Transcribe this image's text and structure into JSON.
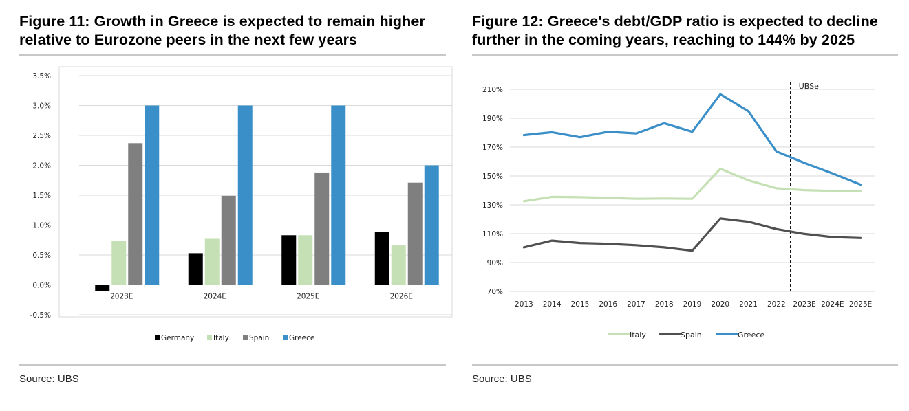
{
  "colors": {
    "germany": "#000000",
    "italy": "#c5e0b4",
    "spain": "#7f7f7f",
    "greece": "#3a8fc8",
    "spain_line": "#505050",
    "grid": "#d9d9d9",
    "rule": "#c8c8c8"
  },
  "figure11": {
    "title_line1": "Figure 11: Growth in Greece is expected to remain higher",
    "title_line2": "relative to Eurozone peers in the next few years",
    "source": "Source: UBS",
    "chart_data": {
      "type": "bar",
      "categories": [
        "2023E",
        "2024E",
        "2025E",
        "2026E"
      ],
      "series": [
        {
          "name": "Germany",
          "values": [
            -0.1,
            0.53,
            0.83,
            0.89
          ]
        },
        {
          "name": "Italy",
          "values": [
            0.73,
            0.77,
            0.83,
            0.66
          ]
        },
        {
          "name": "Spain",
          "values": [
            2.37,
            1.49,
            1.88,
            1.71
          ]
        },
        {
          "name": "Greece",
          "values": [
            3.0,
            3.0,
            3.0,
            2.0
          ]
        }
      ],
      "ylim": [
        -0.5,
        3.5
      ],
      "yticks": [
        "-0.5%",
        "0.0%",
        "0.5%",
        "1.0%",
        "1.5%",
        "2.0%",
        "2.5%",
        "3.0%",
        "3.5%"
      ],
      "grid": true,
      "legend": "bottom"
    }
  },
  "figure12": {
    "title_line1": "Figure 12: Greece's debt/GDP ratio is expected to decline",
    "title_line2": "further in the coming years, reaching to 144% by 2025",
    "source": "Source: UBS",
    "forecast_label": "UBSe",
    "chart_data": {
      "type": "line",
      "x": [
        "2013",
        "2014",
        "2015",
        "2016",
        "2017",
        "2018",
        "2019",
        "2020",
        "2021",
        "2022",
        "2023E",
        "2024E",
        "2025E"
      ],
      "series": [
        {
          "name": "Italy",
          "values": [
            132.5,
            135.5,
            135.3,
            134.8,
            134.2,
            134.4,
            134.2,
            155.0,
            147.0,
            141.5,
            140.2,
            139.6,
            139.5
          ]
        },
        {
          "name": "Spain",
          "values": [
            100.5,
            105.2,
            103.5,
            103.0,
            102.0,
            100.5,
            98.2,
            120.5,
            118.3,
            113.2,
            109.8,
            107.6,
            107.0
          ]
        },
        {
          "name": "Greece",
          "values": [
            178.3,
            180.3,
            176.8,
            180.6,
            179.5,
            186.5,
            180.6,
            206.6,
            194.9,
            167.0,
            159.0,
            151.8,
            144.0
          ]
        }
      ],
      "ylim": [
        70,
        210
      ],
      "yticks": [
        "70%",
        "90%",
        "110%",
        "130%",
        "150%",
        "170%",
        "190%",
        "210%"
      ],
      "forecast_start": "2023E",
      "grid": true,
      "legend": "bottom"
    }
  }
}
